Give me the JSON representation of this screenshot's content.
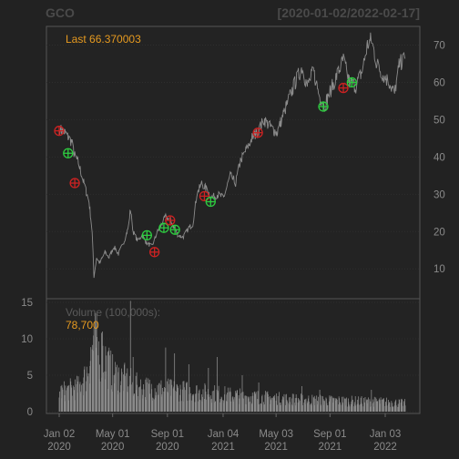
{
  "header": {
    "symbol": "GCO",
    "range": "[2020-01-02/2022-02-17]"
  },
  "price_panel": {
    "last_label": "Last 66.370003"
  },
  "volume_panel": {
    "label": "Volume (100,000s):",
    "last_value": "78,700"
  },
  "colors": {
    "background": "#222222",
    "line": "#8c8c8c",
    "buy_marker": "#2ecc40",
    "sell_marker": "#cc2222",
    "accent": "#e69a20"
  },
  "chart_data": [
    {
      "type": "line",
      "title": "GCO",
      "subtitle": "[2020-01-02/2022-02-17]",
      "y_axis_side": "right",
      "ylim": [
        2,
        75
      ],
      "y_ticks": [
        10,
        20,
        30,
        40,
        50,
        60,
        70
      ],
      "x_tick_labels": [
        [
          "Jan 02",
          "2020"
        ],
        [
          "May 01",
          "2020"
        ],
        [
          "Sep 01",
          "2020"
        ],
        [
          "Jan 04",
          "2021"
        ],
        [
          "May 03",
          "2021"
        ],
        [
          "Sep 01",
          "2021"
        ],
        [
          "Jan 03",
          "2022"
        ]
      ],
      "x_tick_dates": [
        "2020-01-02",
        "2020-05-01",
        "2020-09-01",
        "2021-01-04",
        "2021-05-03",
        "2021-09-01",
        "2022-01-03"
      ],
      "xlim": [
        "2020-01-02",
        "2022-02-17"
      ],
      "series": [
        {
          "points": [
            [
              "2020-01-02",
              47.5
            ],
            [
              "2020-01-15",
              46.5
            ],
            [
              "2020-01-30",
              44.0
            ],
            [
              "2020-02-05",
              40.5
            ],
            [
              "2020-02-14",
              38.5
            ],
            [
              "2020-02-24",
              34.0
            ],
            [
              "2020-03-02",
              31.0
            ],
            [
              "2020-03-09",
              28.0
            ],
            [
              "2020-03-16",
              20.0
            ],
            [
              "2020-03-20",
              8.0
            ],
            [
              "2020-03-26",
              13.0
            ],
            [
              "2020-04-02",
              11.5
            ],
            [
              "2020-04-14",
              14.5
            ],
            [
              "2020-04-23",
              13.0
            ],
            [
              "2020-05-04",
              16.0
            ],
            [
              "2020-05-14",
              14.0
            ],
            [
              "2020-05-27",
              17.5
            ],
            [
              "2020-06-05",
              21.0
            ],
            [
              "2020-06-10",
              26.0
            ],
            [
              "2020-06-16",
              20.0
            ],
            [
              "2020-06-26",
              17.5
            ],
            [
              "2020-07-06",
              19.0
            ],
            [
              "2020-07-16",
              17.0
            ],
            [
              "2020-07-28",
              16.0
            ],
            [
              "2020-08-10",
              20.0
            ],
            [
              "2020-08-19",
              22.0
            ],
            [
              "2020-08-28",
              24.0
            ],
            [
              "2020-09-08",
              23.0
            ],
            [
              "2020-09-16",
              21.0
            ],
            [
              "2020-09-25",
              19.0
            ],
            [
              "2020-10-06",
              18.5
            ],
            [
              "2020-10-19",
              21.0
            ],
            [
              "2020-10-28",
              22.0
            ],
            [
              "2020-11-06",
              30.0
            ],
            [
              "2020-11-17",
              33.0
            ],
            [
              "2020-11-30",
              31.0
            ],
            [
              "2020-12-10",
              29.0
            ],
            [
              "2020-12-22",
              30.0
            ],
            [
              "2021-01-05",
              29.0
            ],
            [
              "2021-01-20",
              35.0
            ],
            [
              "2021-02-01",
              33.0
            ],
            [
              "2021-02-12",
              39.0
            ],
            [
              "2021-02-25",
              42.0
            ],
            [
              "2021-03-10",
              45.0
            ],
            [
              "2021-03-24",
              47.0
            ],
            [
              "2021-04-06",
              50.0
            ],
            [
              "2021-04-20",
              48.0
            ],
            [
              "2021-05-05",
              46.5
            ],
            [
              "2021-05-18",
              51.0
            ],
            [
              "2021-06-02",
              56.0
            ],
            [
              "2021-06-15",
              60.0
            ],
            [
              "2021-06-30",
              64.0
            ],
            [
              "2021-07-12",
              59.0
            ],
            [
              "2021-07-26",
              63.0
            ],
            [
              "2021-08-09",
              56.0
            ],
            [
              "2021-08-20",
              54.0
            ],
            [
              "2021-09-03",
              58.0
            ],
            [
              "2021-09-17",
              62.0
            ],
            [
              "2021-10-01",
              66.0
            ],
            [
              "2021-10-15",
              60.0
            ],
            [
              "2021-10-29",
              59.0
            ],
            [
              "2021-11-12",
              63.0
            ],
            [
              "2021-11-24",
              70.0
            ],
            [
              "2021-12-03",
              71.5
            ],
            [
              "2021-12-15",
              65.0
            ],
            [
              "2021-12-29",
              62.0
            ],
            [
              "2022-01-12",
              60.0
            ],
            [
              "2022-01-24",
              57.0
            ],
            [
              "2022-02-04",
              65.0
            ],
            [
              "2022-02-17",
              66.37
            ]
          ]
        }
      ]
    },
    {
      "type": "bar",
      "ylabel": "Volume (100,000s)",
      "ylim": [
        0,
        15.5
      ],
      "y_ticks": [
        0,
        5,
        10,
        15
      ],
      "xlim": [
        "2020-01-02",
        "2022-02-17"
      ],
      "volume_profile": [
        [
          "2020-01-02",
          2.8
        ],
        [
          "2020-02-15",
          3.5
        ],
        [
          "2020-03-01",
          5.0
        ],
        [
          "2020-03-20",
          10.0
        ],
        [
          "2020-04-10",
          8.0
        ],
        [
          "2020-05-01",
          5.5
        ],
        [
          "2020-06-01",
          4.5
        ],
        [
          "2020-07-01",
          3.5
        ],
        [
          "2020-09-01",
          3.2
        ],
        [
          "2020-11-15",
          2.8
        ],
        [
          "2021-02-01",
          2.3
        ],
        [
          "2021-06-01",
          1.8
        ],
        [
          "2021-09-01",
          1.6
        ],
        [
          "2022-01-01",
          1.4
        ],
        [
          "2022-02-17",
          1.2
        ]
      ],
      "volume_spikes": [
        [
          "2020-03-20",
          11.5
        ],
        [
          "2020-04-08",
          11.0
        ],
        [
          "2020-06-10",
          15.2
        ],
        [
          "2020-06-16",
          7.5
        ],
        [
          "2020-08-28",
          8.8
        ],
        [
          "2020-09-17",
          8.0
        ],
        [
          "2020-10-19",
          6.5
        ],
        [
          "2020-12-02",
          6.0
        ],
        [
          "2020-12-22",
          7.5
        ],
        [
          "2021-02-16",
          5.0
        ],
        [
          "2021-03-25",
          4.0
        ],
        [
          "2021-06-30",
          3.5
        ],
        [
          "2021-08-09",
          3.0
        ],
        [
          "2021-12-03",
          3.0
        ]
      ]
    }
  ],
  "trade_markers": [
    {
      "type": "sell",
      "date": "2020-01-02",
      "price": 47.0
    },
    {
      "type": "buy",
      "date": "2020-01-22",
      "price": 41.0
    },
    {
      "type": "sell",
      "date": "2020-02-06",
      "price": 33.0
    },
    {
      "type": "buy",
      "date": "2020-07-17",
      "price": 19.0
    },
    {
      "type": "sell",
      "date": "2020-08-03",
      "price": 14.5
    },
    {
      "type": "buy",
      "date": "2020-08-24",
      "price": 21.0
    },
    {
      "type": "sell",
      "date": "2020-09-07",
      "price": 23.0
    },
    {
      "type": "buy",
      "date": "2020-09-18",
      "price": 20.5
    },
    {
      "type": "sell",
      "date": "2020-11-23",
      "price": 29.5
    },
    {
      "type": "buy",
      "date": "2020-12-07",
      "price": 28.0
    },
    {
      "type": "sell",
      "date": "2021-03-23",
      "price": 46.5
    },
    {
      "type": "buy",
      "date": "2021-08-17",
      "price": 53.5
    },
    {
      "type": "sell",
      "date": "2021-10-01",
      "price": 58.5
    },
    {
      "type": "buy",
      "date": "2021-10-20",
      "price": 60.0
    }
  ]
}
